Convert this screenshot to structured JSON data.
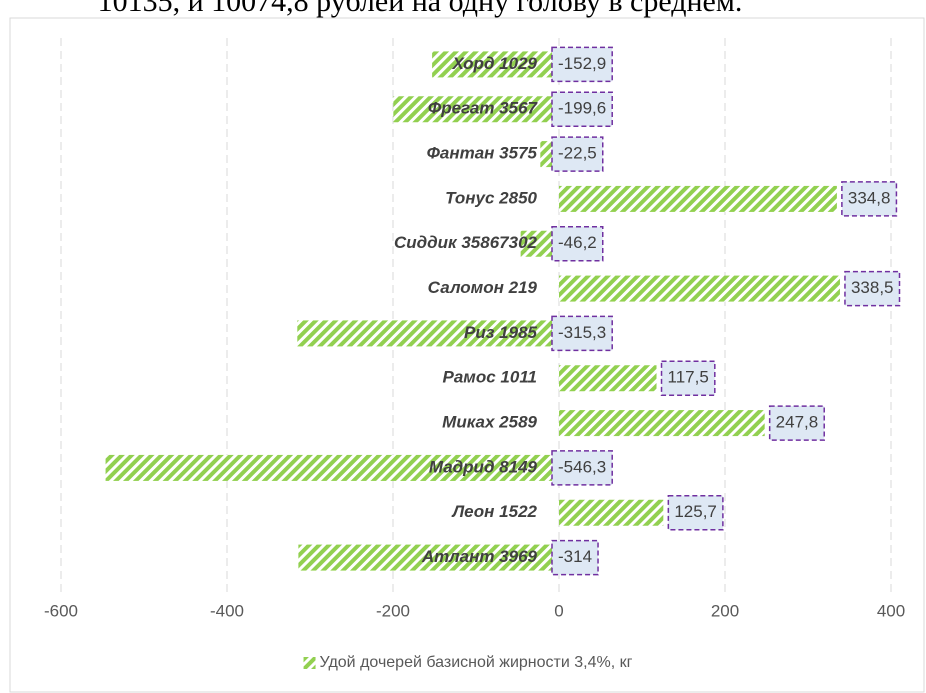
{
  "page_text": "10135, и 10074,8 рублей на одну голову в среднем.",
  "chart_data": {
    "type": "barh",
    "categories": [
      "Хорд 1029",
      "Фрегат 3567",
      "Фантан 3575",
      "Тонус 2850",
      "Сиддик 35867302",
      "Саломон 219",
      "Риз 1985",
      "Рамос 1011",
      "Миках 2589",
      "Мадрид 8149",
      "Леон 1522",
      "Атлант 3969"
    ],
    "series": [
      {
        "name": "Удой дочерей базисной жирности 3,4%, кг",
        "color": "#92d050",
        "values": [
          -152.9,
          -199.6,
          -22.5,
          334.8,
          -46.2,
          338.5,
          -315.3,
          117.5,
          247.8,
          -546.3,
          125.7,
          -314
        ],
        "value_labels": [
          "-152,9",
          "-199,6",
          "-22,5",
          "334,8",
          "-46,2",
          "338,5",
          "-315,3",
          "117,5",
          "247,8",
          "-546,3",
          "125,7",
          "-314"
        ]
      }
    ],
    "xlim": [
      -600,
      400
    ],
    "xticks": [
      -600,
      -400,
      -200,
      0,
      200,
      400
    ],
    "grid": true,
    "legend": "bottom"
  }
}
